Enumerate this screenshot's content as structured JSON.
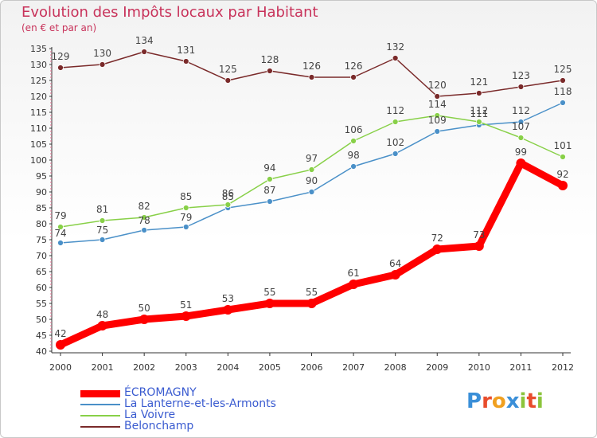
{
  "header": {
    "title": "Evolution des Impôts locaux par Habitant",
    "subtitle": "(en € et par an)"
  },
  "logo": {
    "text": "Proxiti",
    "letters": [
      {
        "char": "P",
        "color": "#3a8fd8"
      },
      {
        "char": "r",
        "color": "#e84c2c"
      },
      {
        "char": "o",
        "color": "#f0a020"
      },
      {
        "char": "x",
        "color": "#3a8fd8"
      },
      {
        "char": "i",
        "color": "#8cc43c"
      },
      {
        "char": "t",
        "color": "#e84c2c"
      },
      {
        "char": "i",
        "color": "#8cc43c"
      }
    ]
  },
  "chart_data": {
    "type": "line",
    "title": "Evolution des Impôts locaux par Habitant",
    "subtitle": "(en € et par an)",
    "xlabel": "",
    "ylabel": "",
    "x": [
      "2000",
      "2001",
      "2002",
      "2003",
      "2004",
      "2005",
      "2006",
      "2007",
      "2008",
      "2009",
      "2010",
      "2011",
      "2012"
    ],
    "ylim": [
      40,
      135
    ],
    "yticks": [
      40,
      45,
      50,
      55,
      60,
      65,
      70,
      75,
      80,
      85,
      90,
      95,
      100,
      105,
      110,
      115,
      120,
      125,
      130,
      135
    ],
    "grid": false,
    "legend_position": "bottom-left",
    "series": [
      {
        "name": "ÉCROMAGNY",
        "color": "#ff0000",
        "values": [
          42,
          48,
          50,
          51,
          53,
          55,
          55,
          61,
          64,
          72,
          73,
          99,
          92
        ]
      },
      {
        "name": "La Lanterne-et-les-Armonts",
        "color": "#4a90c8",
        "values": [
          74,
          75,
          78,
          79,
          85,
          87,
          90,
          98,
          102,
          109,
          111,
          112,
          118
        ]
      },
      {
        "name": "La Voivre",
        "color": "#88d048",
        "values": [
          79,
          81,
          82,
          85,
          86,
          94,
          97,
          106,
          112,
          114,
          112,
          107,
          101
        ]
      },
      {
        "name": "Belonchamp",
        "color": "#7a2a2a",
        "values": [
          129,
          130,
          134,
          131,
          125,
          128,
          126,
          126,
          132,
          120,
          121,
          123,
          125
        ]
      }
    ]
  }
}
